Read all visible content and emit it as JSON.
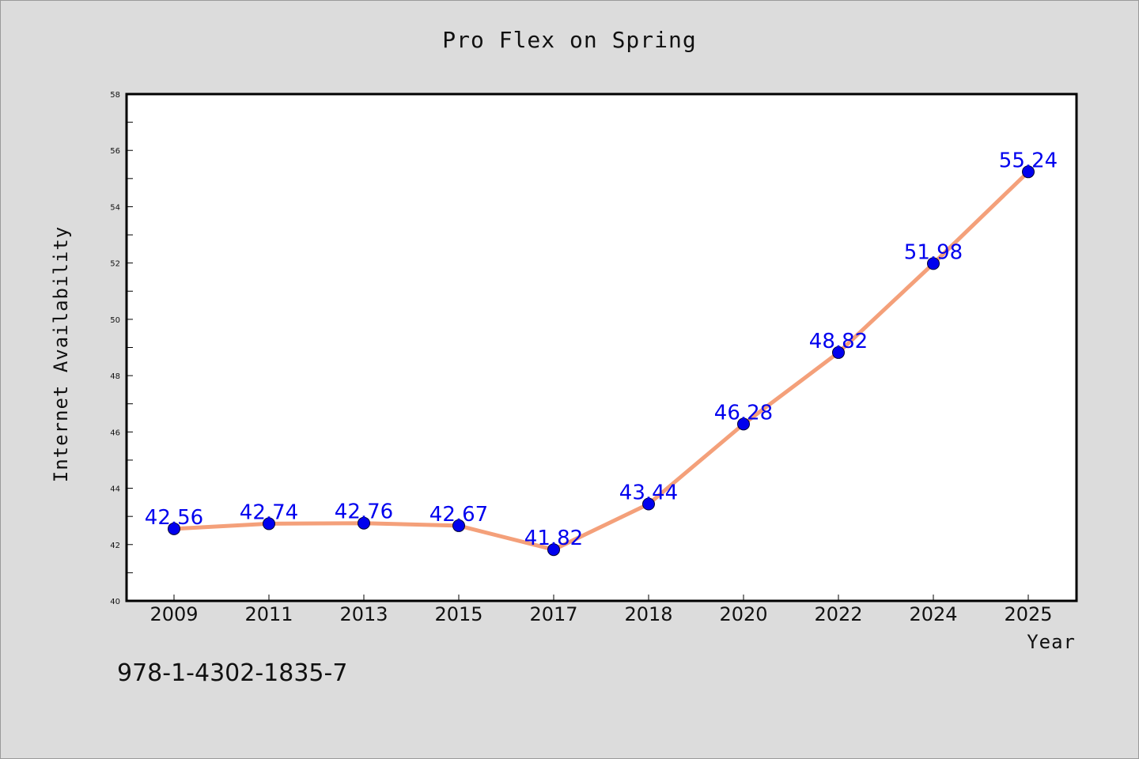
{
  "chart_data": {
    "type": "line",
    "title": "Pro Flex on Spring",
    "xlabel": "Year",
    "ylabel": "Internet Availability",
    "categories": [
      "2009",
      "2011",
      "2013",
      "2015",
      "2017",
      "2018",
      "2020",
      "2022",
      "2024",
      "2025"
    ],
    "series": [
      {
        "values": [
          42.56,
          42.74,
          42.76,
          42.67,
          41.82,
          43.44,
          46.28,
          48.82,
          51.98,
          55.24
        ]
      }
    ],
    "ylim": [
      40,
      58
    ],
    "yticks": [
      40,
      42,
      44,
      46,
      48,
      50,
      52,
      54,
      56,
      58
    ],
    "line_color": "#f4a07a",
    "marker_color": "#0000ee",
    "label_color": "#0000ee",
    "grid": false,
    "legend": "none"
  },
  "footer": {
    "code": "978-1-4302-1835-7"
  }
}
